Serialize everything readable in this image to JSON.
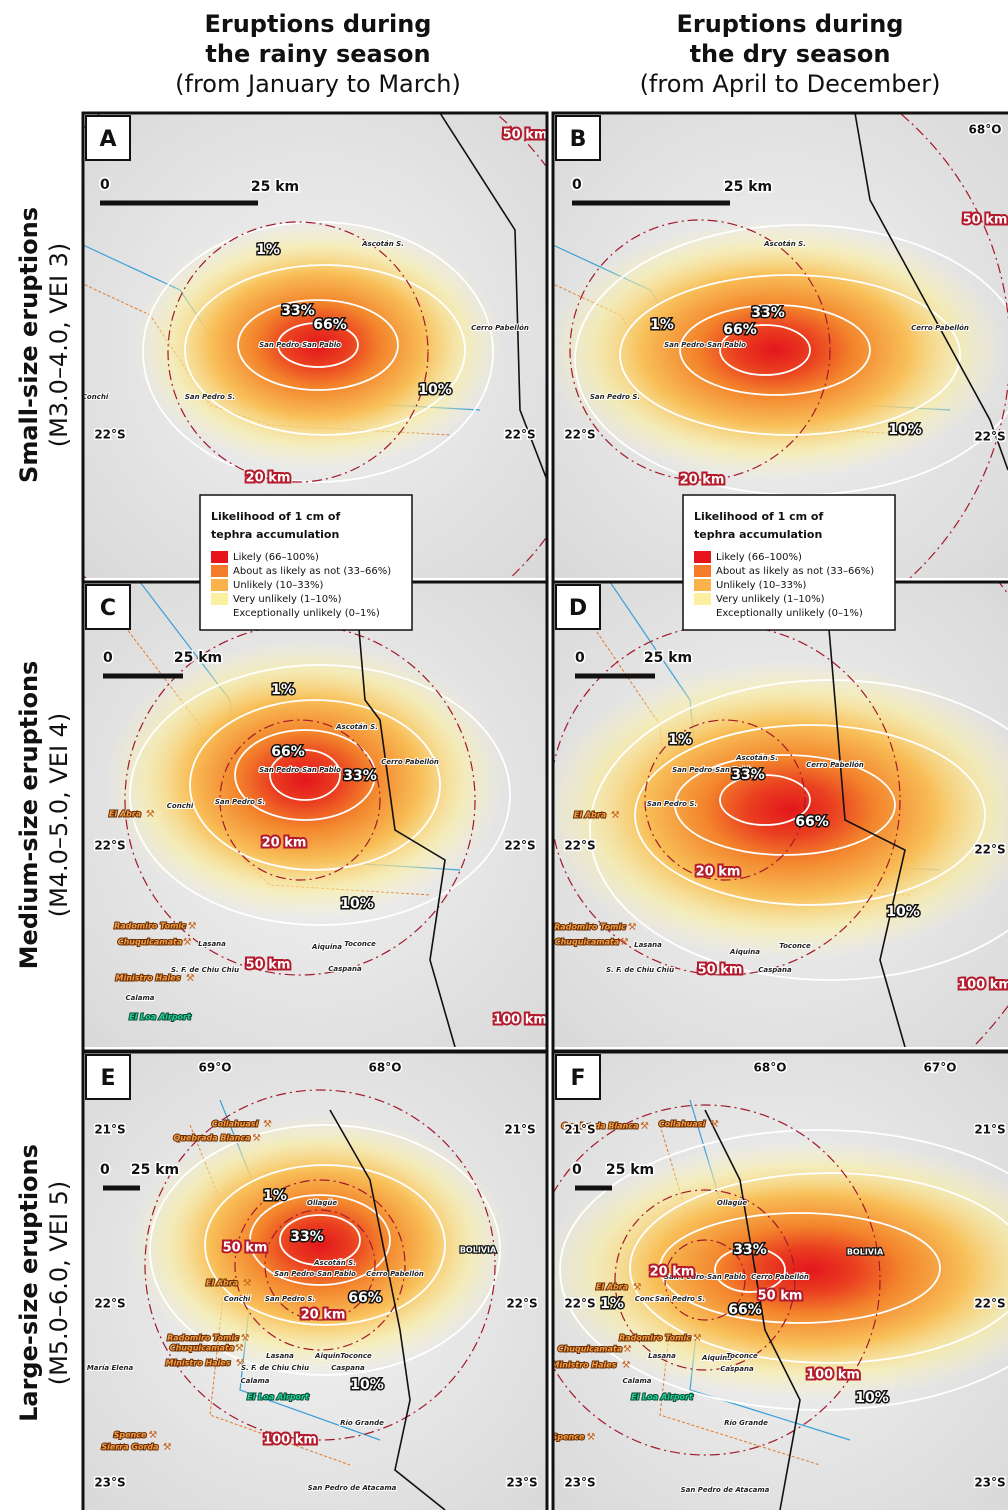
{
  "column_headers": [
    {
      "lines": [
        "Eruptions during",
        "the rainy season",
        "(from January to March)"
      ]
    },
    {
      "lines": [
        "Eruptions during",
        "the dry season",
        "(from April to December)"
      ]
    }
  ],
  "row_headers": [
    {
      "title": "Small-size eruptions",
      "subtitle": "(M3.0–4.0, VEI 3)"
    },
    {
      "title": "Medium-size eruptions",
      "subtitle": "(M4.0–5.0, VEI 4)"
    },
    {
      "title": "Large-size eruptions",
      "subtitle": "(M5.0–6.0, VEI 5)"
    }
  ],
  "legends": [
    {
      "title": [
        "Likelihood of 1 cm of",
        "tephra accumulation"
      ],
      "items": [
        {
          "label": "Likely (66–100%)",
          "color": "#e8141c"
        },
        {
          "label": "About as likely as not (33–66%)",
          "color": "#f47b2a"
        },
        {
          "label": "Unlikely (10–33%)",
          "color": "#f9b24c"
        },
        {
          "label": "Very unlikely (1–10%)",
          "color": "#fbf0a0"
        },
        {
          "label": "Exceptionally unlikely (0–1%)",
          "color": "#ffffff"
        }
      ]
    },
    {
      "title": [
        "Likelihood of 1 cm of",
        "tephra accumulation"
      ],
      "items": [
        {
          "label": "Likely (66–100%)",
          "color": "#e8141c"
        },
        {
          "label": "About as likely as not (33–66%)",
          "color": "#f47b2a"
        },
        {
          "label": "Unlikely (10–33%)",
          "color": "#f9b24c"
        },
        {
          "label": "Very unlikely (1–10%)",
          "color": "#fbf0a0"
        },
        {
          "label": "Exceptionally unlikely (0–1%)",
          "color": "#ffffff"
        }
      ]
    }
  ],
  "panels": [
    {
      "letter": "A",
      "scale_labels": [
        "0",
        "25 km"
      ],
      "contour_labels": [
        "1%",
        "33%",
        "66%",
        "10%"
      ],
      "distance_labels": [
        "50 km",
        "20 km"
      ],
      "coordinates": [
        "22°S",
        "22°S"
      ],
      "places": [
        "San Pedro-San Pablo",
        "Ascotán S.",
        "Cerro Pabellón",
        "San Pedro S.",
        "Conchi"
      ]
    },
    {
      "letter": "B",
      "scale_labels": [
        "0",
        "25 km"
      ],
      "contour_labels": [
        "1%",
        "33%",
        "66%",
        "10%"
      ],
      "distance_labels": [
        "50 km",
        "20 km"
      ],
      "coordinates": [
        "68°O",
        "22°S",
        "22°S"
      ],
      "places": [
        "San Pedro-San Pablo",
        "Ascotán S.",
        "Cerro Pabellón",
        "San Pedro S."
      ]
    },
    {
      "letter": "C",
      "scale_labels": [
        "0",
        "25 km"
      ],
      "contour_labels": [
        "1%",
        "66%",
        "33%",
        "10%"
      ],
      "distance_labels": [
        "20 km",
        "50 km",
        "100 km"
      ],
      "coordinates": [
        "22°S",
        "22°S"
      ],
      "places": [
        "San Pedro-San Pablo",
        "Ascotán S.",
        "Cerro Pabellón",
        "El Abra",
        "Conchi",
        "San Pedro S.",
        "Radomiro Tomic",
        "Chuquicamata",
        "Lasana",
        "Ministro Hales",
        "S. F. de Chiu Chiu",
        "Aiquina",
        "Toconce",
        "Caspana",
        "Calama",
        "El Loa Airport"
      ]
    },
    {
      "letter": "D",
      "scale_labels": [
        "0",
        "25 km"
      ],
      "contour_labels": [
        "1%",
        "33%",
        "66%",
        "10%"
      ],
      "distance_labels": [
        "20 km",
        "50 km",
        "100 km"
      ],
      "coordinates": [
        "22°S",
        "22°S"
      ],
      "places": [
        "San Pedro-San Pablo",
        "Ascotán S.",
        "Cerro Pabellón",
        "El Abra",
        "San Pedro S.",
        "Radomiro Tomic",
        "Chuquicamata",
        "Lasana",
        "S. F. de Chiu Chiu",
        "Aiquina",
        "Toconce",
        "Caspana"
      ]
    },
    {
      "letter": "E",
      "scale_labels": [
        "0",
        "25 km"
      ],
      "contour_labels": [
        "1%",
        "33%",
        "66%",
        "10%"
      ],
      "distance_labels": [
        "50 km",
        "20 km",
        "100 km"
      ],
      "coordinates": [
        "69°O",
        "68°O",
        "21°S",
        "21°S",
        "22°S",
        "22°S",
        "23°S",
        "23°S"
      ],
      "places": [
        "Collahuasi",
        "Quebrada Blanca",
        "Ollagüe",
        "Ascotán S.",
        "San Pedro-San Pablo",
        "Cerro Pabellón",
        "BOLIVIA",
        "El Abra",
        "Conchi",
        "San Pedro S.",
        "Radomiro Tomic",
        "Chuquicamata",
        "Ministro Hales",
        "Lasana",
        "S. F. de Chiu Chiu",
        "Aiquina",
        "Toconce",
        "Caspana",
        "María Elena",
        "Calama",
        "El Loa Airport",
        "Río Grande",
        "Spence",
        "Sierra Gorda",
        "San Pedro de Atacama"
      ]
    },
    {
      "letter": "F",
      "scale_labels": [
        "0",
        "25 km"
      ],
      "contour_labels": [
        "33%",
        "66%",
        "10%",
        "1%"
      ],
      "distance_labels": [
        "20 km",
        "50 km",
        "100 km"
      ],
      "coordinates": [
        "68°O",
        "67°O",
        "21°S",
        "21°S",
        "22°S",
        "22°S",
        "23°S",
        "23°S"
      ],
      "places": [
        "Collahuasi",
        "Quebrada Blanca",
        "Ollagüe",
        "San Pedro-San Pablo",
        "Cerro Pabellón",
        "BOLIVIA",
        "El Abra",
        "Conchi",
        "San Pedro S.",
        "Radomiro Tomic",
        "Chuquicamata",
        "Ministro Hales",
        "Lasana",
        "Aiquina",
        "Toconce",
        "Caspana",
        "Calama",
        "El Loa Airport",
        "Río Grande",
        "Spence",
        "San Pedro de Atacama"
      ]
    }
  ]
}
